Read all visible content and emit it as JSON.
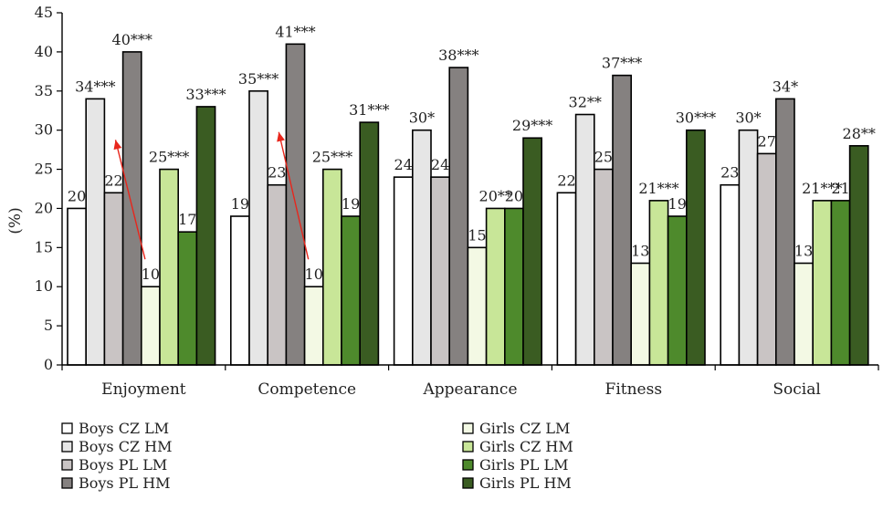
{
  "chart_data": {
    "type": "bar",
    "ylabel": "(%)",
    "ylim": [
      0,
      45
    ],
    "yticks": [
      0,
      5,
      10,
      15,
      20,
      25,
      30,
      35,
      40,
      45
    ],
    "categories": [
      "Enjoyment",
      "Competence",
      "Appearance",
      "Fitness",
      "Social"
    ],
    "series": [
      {
        "name": "Boys CZ LM",
        "color": "#ffffff",
        "values": [
          20,
          19,
          24,
          22,
          23
        ],
        "labels": [
          "20",
          "19",
          "24",
          "22",
          "23"
        ]
      },
      {
        "name": "Boys CZ HM",
        "color": "#e6e6e6",
        "values": [
          34,
          35,
          30,
          32,
          30
        ],
        "labels": [
          "34***",
          "35***",
          "30*",
          "32**",
          "30*"
        ]
      },
      {
        "name": "Boys PL LM",
        "color": "#c9c4c4",
        "values": [
          22,
          23,
          24,
          25,
          27
        ],
        "labels": [
          "22",
          "23",
          "24",
          "25",
          "27"
        ]
      },
      {
        "name": "Boys PL HM",
        "color": "#858180",
        "values": [
          40,
          41,
          38,
          37,
          34
        ],
        "labels": [
          "40***",
          "41***",
          "38***",
          "37***",
          "34*"
        ]
      },
      {
        "name": "Girls CZ LM",
        "color": "#f3f9e4",
        "values": [
          10,
          10,
          15,
          13,
          13
        ],
        "labels": [
          "10",
          "10",
          "15",
          "13",
          "13"
        ]
      },
      {
        "name": "Girls CZ HM",
        "color": "#c8e698",
        "values": [
          25,
          25,
          20,
          21,
          21
        ],
        "labels": [
          "25***",
          "25***",
          "20**",
          "21***",
          "21***"
        ]
      },
      {
        "name": "Girls PL LM",
        "color": "#4e8a2c",
        "values": [
          17,
          19,
          20,
          19,
          21
        ],
        "labels": [
          "17",
          "19",
          "20",
          "19",
          "21"
        ]
      },
      {
        "name": "Girls PL HM",
        "color": "#3a5c22",
        "values": [
          33,
          31,
          29,
          30,
          28
        ],
        "labels": [
          "33***",
          "31***",
          "29***",
          "30***",
          "28**"
        ]
      }
    ],
    "arrows": [
      {
        "category": "Enjoyment",
        "from_series": "Girls CZ LM",
        "to_series": "Boys CZ HM",
        "color": "#e8261c"
      },
      {
        "category": "Competence",
        "from_series": "Girls CZ LM",
        "to_series": "Boys CZ HM",
        "color": "#e8261c"
      }
    ],
    "legend": {
      "placement": "bottom",
      "columns": 2
    },
    "grid": false
  }
}
